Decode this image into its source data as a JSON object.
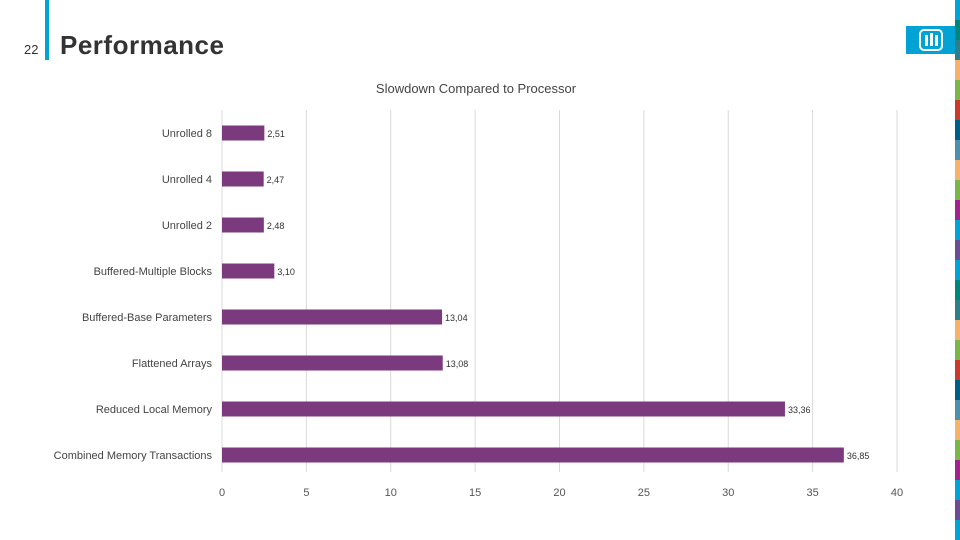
{
  "slide": {
    "number": "22",
    "title": "Performance"
  },
  "logo": {
    "icon": "sandia-logo-icon"
  },
  "colors": {
    "accent": "#00a3d4",
    "bar": "#7b3a7e",
    "strip": [
      "#00a3d4",
      "#2f7f8a",
      "#7ab648",
      "#005f86",
      "#f4b26b",
      "#a3238e",
      "#6a4c93",
      "#00857c",
      "#f4b26b",
      "#c73a2e",
      "#4d8fac",
      "#7ab648",
      "#00a3d4"
    ]
  },
  "chart_data": {
    "type": "bar",
    "orientation": "horizontal",
    "title": "Slowdown Compared to Processor",
    "categories": [
      "Unrolled 8",
      "Unrolled 4",
      "Unrolled 2",
      "Buffered-Multiple Blocks",
      "Buffered-Base Parameters",
      "Flattened Arrays",
      "Reduced Local Memory",
      "Combined Memory Transactions"
    ],
    "values": [
      2.51,
      2.47,
      2.48,
      3.1,
      13.04,
      13.08,
      33.36,
      36.85
    ],
    "value_labels": [
      "2,51",
      "2,47",
      "2,48",
      "3,10",
      "13,04",
      "13,08",
      "33,36",
      "36,85"
    ],
    "xlim": [
      0,
      40
    ],
    "xticks": [
      0,
      5,
      10,
      15,
      20,
      25,
      30,
      35,
      40
    ],
    "xtick_labels": [
      "0",
      "5",
      "10",
      "15",
      "20",
      "25",
      "30",
      "35",
      "40"
    ],
    "grid": "vertical",
    "xlabel": "",
    "ylabel": ""
  }
}
